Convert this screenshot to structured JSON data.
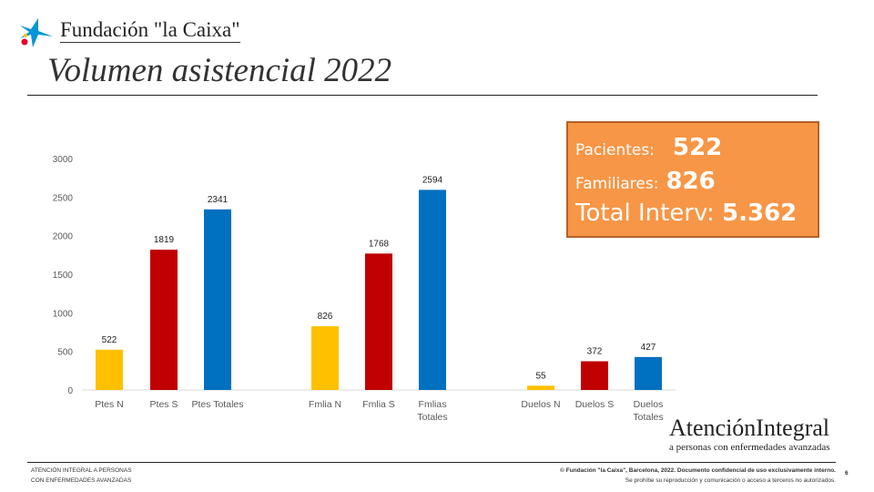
{
  "header": {
    "logo_text": "Fundación \"la Caixa\"",
    "title": "Volumen asistencial 2022"
  },
  "stats": {
    "pacientes_label": "Pacientes:",
    "pacientes_value": "522",
    "familiares_label": "Familiares:",
    "familiares_value": "826",
    "total_label": "Total Interv:",
    "total_value": "5.362"
  },
  "colors": {
    "yellow": "#FFC000",
    "red": "#C00000",
    "blue": "#0070C0",
    "stats_bg": "#F79646"
  },
  "chart_data": {
    "type": "bar",
    "categories": [
      [
        "Ptes N"
      ],
      [
        "Ptes S"
      ],
      [
        "Ptes Totales"
      ],
      [
        "Fmlia N"
      ],
      [
        "Fmlia S"
      ],
      [
        "Fmlias",
        "Totales"
      ],
      [
        "Duelos N"
      ],
      [
        "Duelos S"
      ],
      [
        "Duelos",
        "Totales"
      ]
    ],
    "values": [
      522,
      1819,
      2341,
      826,
      1768,
      2594,
      55,
      372,
      427
    ],
    "bar_colors": [
      "#FFC000",
      "#C00000",
      "#0070C0",
      "#FFC000",
      "#C00000",
      "#0070C0",
      "#FFC000",
      "#C00000",
      "#0070C0"
    ],
    "ylim": [
      0,
      3000
    ],
    "yticks": [
      0,
      500,
      1000,
      1500,
      2000,
      2500,
      3000
    ],
    "title": "",
    "xlabel": "",
    "ylabel": "",
    "grid": false,
    "data_labels": true
  },
  "footer": {
    "brand": "AtenciónIntegral",
    "brand_sub": "a personas con enfermedades avanzadas",
    "left_line1": "ATENCIÓN INTEGRAL A PERSONAS",
    "left_line2": "CON ENFERMEDADES AVANZADAS",
    "right_line1": "© Fundación \"la Caixa\", Barcelona,  2022. Documento confidencial  de uso exclusivamente interno.",
    "right_line2": "Se prohíbe su reproducción y comunicación o acceso a terceros no autorizados.",
    "page": "6"
  }
}
